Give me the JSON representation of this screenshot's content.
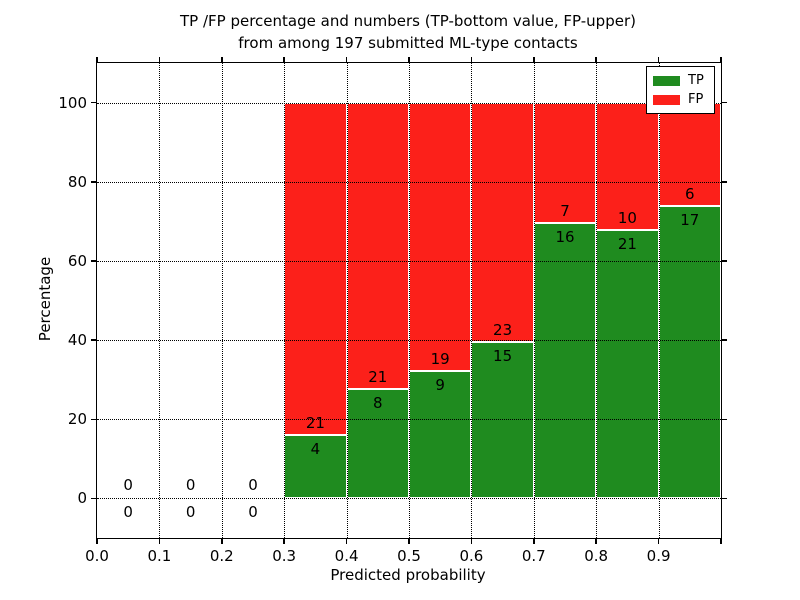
{
  "figure": {
    "title_line1": "TP /FP percentage and numbers (TP-bottom value, FP-upper)",
    "title_line2": "from among 197 submitted ML-type contacts",
    "xlabel": "Predicted probability",
    "ylabel": "Percentage"
  },
  "chart_data": {
    "type": "bar",
    "stacked": true,
    "normalized_to_percent": true,
    "title": "TP /FP percentage and numbers (TP-bottom value, FP-upper) from among 197 submitted ML-type contacts",
    "xlabel": "Predicted probability",
    "ylabel": "Percentage",
    "total_contacts": 197,
    "bin_starts": [
      0.0,
      0.1,
      0.2,
      0.3,
      0.4,
      0.5,
      0.6,
      0.7,
      0.8,
      0.9
    ],
    "bin_width": 0.1,
    "series": [
      {
        "name": "TP",
        "color": "#1f8b1f",
        "counts": [
          0,
          0,
          0,
          4,
          8,
          9,
          15,
          16,
          21,
          17
        ]
      },
      {
        "name": "FP",
        "color": "#fc201a",
        "counts": [
          0,
          0,
          0,
          21,
          21,
          19,
          23,
          7,
          10,
          6
        ]
      }
    ],
    "x_tick_labels": [
      "0.0",
      "0.1",
      "0.2",
      "0.3",
      "0.4",
      "0.5",
      "0.6",
      "0.7",
      "0.8",
      "0.9"
    ],
    "x_tick_values": [
      0.0,
      0.1,
      0.2,
      0.3,
      0.4,
      0.5,
      0.6,
      0.7,
      0.8,
      0.9
    ],
    "extra_tick_values": [
      1.0
    ],
    "y_tick_values": [
      0,
      20,
      40,
      60,
      80,
      100
    ],
    "xlim": [
      0.0,
      1.0
    ],
    "ylim": [
      -10,
      110
    ],
    "grid": true,
    "grid_style": "dotted",
    "bar_edge_color": "#ffffff",
    "legend_position": "upper right",
    "legend": [
      {
        "label": "TP",
        "color": "#1f8b1f"
      },
      {
        "label": "FP",
        "color": "#fc201a"
      }
    ]
  }
}
